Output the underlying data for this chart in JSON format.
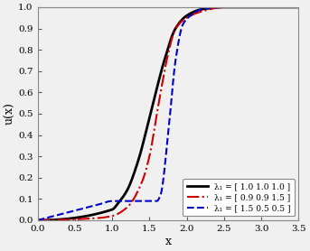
{
  "title": "",
  "xlabel": "x",
  "ylabel": "u(x)",
  "xlim": [
    0,
    3.5
  ],
  "ylim": [
    0,
    1
  ],
  "xticks": [
    0,
    0.5,
    1.0,
    1.5,
    2.0,
    2.5,
    3.0,
    3.5
  ],
  "yticks": [
    0,
    0.1,
    0.2,
    0.3,
    0.4,
    0.5,
    0.6,
    0.7,
    0.8,
    0.9,
    1.0
  ],
  "lines": [
    {
      "label": "λ₁ = [ 1.0 1.0 1.0 ]",
      "color": "#000000",
      "linestyle": "-",
      "linewidth": 2.0,
      "params": [
        1.0,
        1.0,
        1.0
      ]
    },
    {
      "label": "λ₁ = [ 0.9 0.9 1.5 ]",
      "color": "#cc0000",
      "linestyle": "-.",
      "linewidth": 1.5,
      "params": [
        0.9,
        0.9,
        1.5
      ]
    },
    {
      "label": "λ₁ = [ 1.5 0.5 0.5 ]",
      "color": "#0000cc",
      "linestyle": "--",
      "linewidth": 1.5,
      "params": [
        1.5,
        0.5,
        0.5
      ]
    }
  ],
  "legend_loc": "lower right",
  "figsize": [
    3.43,
    2.78
  ],
  "dpi": 100,
  "bg_color": "#f0f0f0",
  "black_curve": {
    "x_points": [
      0.0,
      1.0,
      1.08,
      1.2,
      1.35,
      1.5,
      1.6,
      1.7,
      1.85,
      2.0,
      2.2,
      2.5,
      3.0,
      3.5
    ],
    "y_points": [
      0.0,
      0.05,
      0.08,
      0.14,
      0.28,
      0.48,
      0.62,
      0.75,
      0.9,
      0.96,
      0.99,
      1.0,
      1.0,
      1.0
    ]
  },
  "red_curve": {
    "x_points": [
      0.0,
      0.8,
      1.0,
      1.2,
      1.4,
      1.5,
      1.6,
      1.65,
      1.75,
      1.85,
      2.0,
      2.2,
      2.5,
      3.0,
      3.5
    ],
    "y_points": [
      0.0,
      0.01,
      0.02,
      0.06,
      0.18,
      0.3,
      0.5,
      0.6,
      0.78,
      0.9,
      0.95,
      0.98,
      1.0,
      1.0,
      1.0
    ]
  },
  "blue_curve": {
    "x_points": [
      0.0,
      0.2,
      0.5,
      0.8,
      1.0,
      1.1,
      1.3,
      1.5,
      1.6,
      1.65,
      1.75,
      1.85,
      1.95,
      2.05,
      2.2,
      2.5,
      3.0,
      3.5
    ],
    "y_points": [
      0.0,
      0.018,
      0.045,
      0.072,
      0.09,
      0.09,
      0.09,
      0.09,
      0.09,
      0.12,
      0.4,
      0.75,
      0.92,
      0.96,
      0.99,
      1.0,
      1.0,
      1.0
    ]
  }
}
